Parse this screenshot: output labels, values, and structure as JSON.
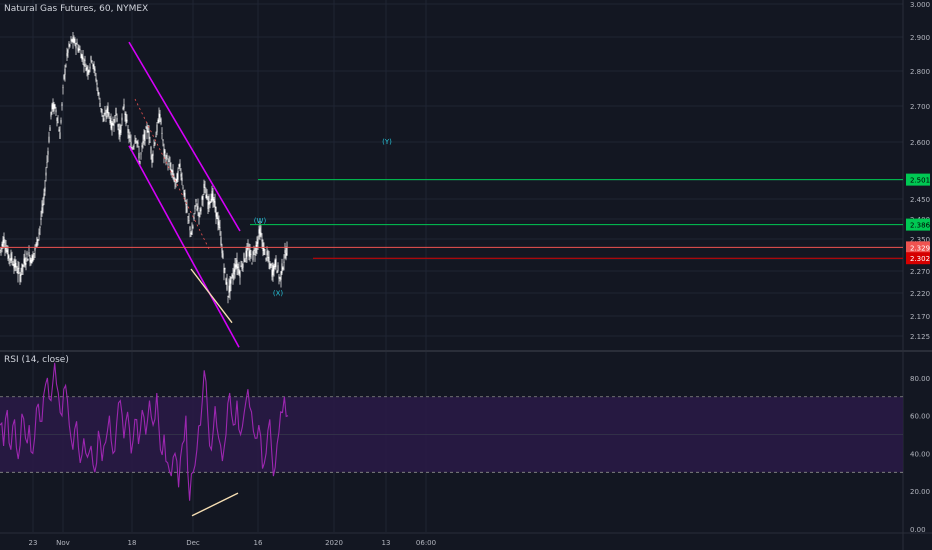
{
  "header": {
    "symbol_title": "Natural Gas Futures, 60, NYMEX"
  },
  "rsi_panel": {
    "title": "RSI (14, close)",
    "overbought": 70,
    "oversold": 30,
    "band_color": "#2a1a47",
    "line_color": "#9c27b0"
  },
  "colors": {
    "background": "#131722",
    "grid": "#1f2433",
    "candle_up": "#ffffff",
    "candle_down": "#ffffff",
    "channel": "#d500f9",
    "divergence": "#f5deb3",
    "target_line": "#00c853",
    "current_line": "#ef5350",
    "wave_label": "#26c6da"
  },
  "chart_data": [
    {
      "type": "candlestick",
      "title": "Natural Gas Futures, 60, NYMEX",
      "ylim": [
        2.1,
        3.0
      ],
      "y_ticks": [
        "3.000",
        "2.900",
        "2.800",
        "2.700",
        "2.600",
        "2.500",
        "2.450",
        "2.400",
        "2.350",
        "2.300",
        "2.270",
        "2.220",
        "2.170",
        "2.125"
      ],
      "x_ticks": [
        "23",
        "Nov",
        "18",
        "Dec",
        "16",
        "2020",
        "13",
        "06:00"
      ],
      "series": [
        {
          "path": [
            [
              0,
              2.32
            ],
            [
              4,
              2.35
            ],
            [
              8,
              2.31
            ],
            [
              12,
              2.3
            ],
            [
              16,
              2.28
            ],
            [
              20,
              2.26
            ],
            [
              24,
              2.29
            ],
            [
              28,
              2.31
            ],
            [
              32,
              2.3
            ],
            [
              36,
              2.33
            ],
            [
              40,
              2.38
            ],
            [
              44,
              2.45
            ],
            [
              48,
              2.58
            ],
            [
              52,
              2.7
            ],
            [
              56,
              2.69
            ],
            [
              60,
              2.62
            ],
            [
              64,
              2.78
            ],
            [
              68,
              2.86
            ],
            [
              72,
              2.89
            ],
            [
              76,
              2.88
            ],
            [
              80,
              2.86
            ],
            [
              84,
              2.83
            ],
            [
              88,
              2.8
            ],
            [
              92,
              2.84
            ],
            [
              96,
              2.78
            ],
            [
              100,
              2.71
            ],
            [
              104,
              2.66
            ],
            [
              108,
              2.69
            ],
            [
              112,
              2.64
            ],
            [
              116,
              2.68
            ],
            [
              120,
              2.62
            ],
            [
              124,
              2.7
            ],
            [
              128,
              2.63
            ],
            [
              132,
              2.58
            ],
            [
              136,
              2.62
            ],
            [
              140,
              2.55
            ],
            [
              144,
              2.61
            ],
            [
              148,
              2.64
            ],
            [
              152,
              2.56
            ],
            [
              156,
              2.62
            ],
            [
              160,
              2.68
            ],
            [
              164,
              2.57
            ],
            [
              168,
              2.55
            ],
            [
              172,
              2.52
            ],
            [
              176,
              2.49
            ],
            [
              180,
              2.54
            ],
            [
              184,
              2.47
            ],
            [
              188,
              2.4
            ],
            [
              192,
              2.36
            ],
            [
              196,
              2.44
            ],
            [
              200,
              2.41
            ],
            [
              204,
              2.48
            ],
            [
              208,
              2.44
            ],
            [
              212,
              2.46
            ],
            [
              216,
              2.42
            ],
            [
              220,
              2.37
            ],
            [
              224,
              2.28
            ],
            [
              228,
              2.22
            ],
            [
              232,
              2.25
            ],
            [
              236,
              2.29
            ],
            [
              240,
              2.27
            ],
            [
              244,
              2.3
            ],
            [
              248,
              2.32
            ],
            [
              252,
              2.3
            ],
            [
              256,
              2.33
            ],
            [
              260,
              2.37
            ],
            [
              264,
              2.32
            ],
            [
              268,
              2.3
            ],
            [
              272,
              2.27
            ],
            [
              276,
              2.29
            ],
            [
              280,
              2.25
            ],
            [
              284,
              2.3
            ],
            [
              288,
              2.33
            ]
          ]
        }
      ],
      "price_labels": [
        {
          "value": 2.501,
          "label": "2.501",
          "color": "#00c853"
        },
        {
          "value": 2.386,
          "label": "2.386",
          "color": "#00c853"
        },
        {
          "value": 2.329,
          "label": "2.329",
          "color": "#ef5350"
        },
        {
          "value": 2.302,
          "label": "2.302",
          "color": "#d50000"
        }
      ],
      "horizontal_lines": [
        {
          "value": 2.501,
          "x_start": 258,
          "color": "#00c853"
        },
        {
          "value": 2.386,
          "x_start": 250,
          "color": "#00c853"
        },
        {
          "value": 2.329,
          "x_start": 0,
          "color": "#ef5350"
        },
        {
          "value": 2.302,
          "x_start": 313,
          "color": "#d50000"
        }
      ],
      "annotations": [
        {
          "text": "(Y)",
          "value": 2.595
        },
        {
          "text": "(W)",
          "value": 2.39
        },
        {
          "text": "(X)",
          "value": 2.215
        }
      ]
    },
    {
      "type": "line",
      "title": "RSI (14, close)",
      "ylim": [
        0,
        90
      ],
      "y_ticks": [
        "80.00",
        "60.00",
        "40.00",
        "20.00",
        "0.00"
      ],
      "series": [
        {
          "values": [
            55,
            44,
            63,
            42,
            58,
            37,
            61,
            48,
            55,
            40,
            64,
            57,
            71,
            80,
            68,
            88,
            72,
            60,
            76,
            55,
            42,
            57,
            35,
            48,
            38,
            44,
            30,
            52,
            36,
            46,
            60,
            40,
            56,
            68,
            48,
            62,
            40,
            58,
            45,
            63,
            50,
            68,
            55,
            72,
            42,
            50,
            35,
            28,
            40,
            22,
            45,
            60,
            15,
            30,
            42,
            55,
            84,
            60,
            42,
            65,
            48,
            36,
            50,
            72,
            55,
            68,
            50,
            62,
            74,
            62,
            48,
            55,
            32,
            40,
            58,
            28,
            45,
            62,
            70,
            60
          ]
        }
      ]
    }
  ]
}
